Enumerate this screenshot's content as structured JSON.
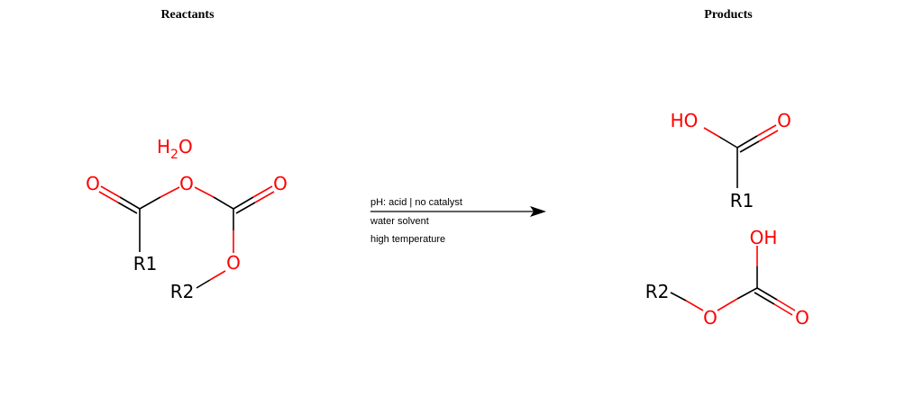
{
  "headings": {
    "reactants": "Reactants",
    "products": "Products"
  },
  "conditions": [
    "pH: acid | no catalyst",
    "water solvent",
    "high temperature"
  ],
  "reactant_labels": {
    "water": "H2O",
    "water_h": "H",
    "water_sub": "2",
    "water_o": "O",
    "o_left": "O",
    "o_bridge": "O",
    "o_right": "O",
    "o_ester": "O",
    "r1": "R1",
    "r2": "R2"
  },
  "product_labels": {
    "acid_ho": "HO",
    "acid_o": "O",
    "acid_r1": "R1",
    "carb_oh": "OH",
    "carb_o": "O",
    "carb_o_ester": "O",
    "carb_r2": "R2"
  },
  "colors": {
    "heteroatom": "#ff0000",
    "bond": "#000000"
  }
}
